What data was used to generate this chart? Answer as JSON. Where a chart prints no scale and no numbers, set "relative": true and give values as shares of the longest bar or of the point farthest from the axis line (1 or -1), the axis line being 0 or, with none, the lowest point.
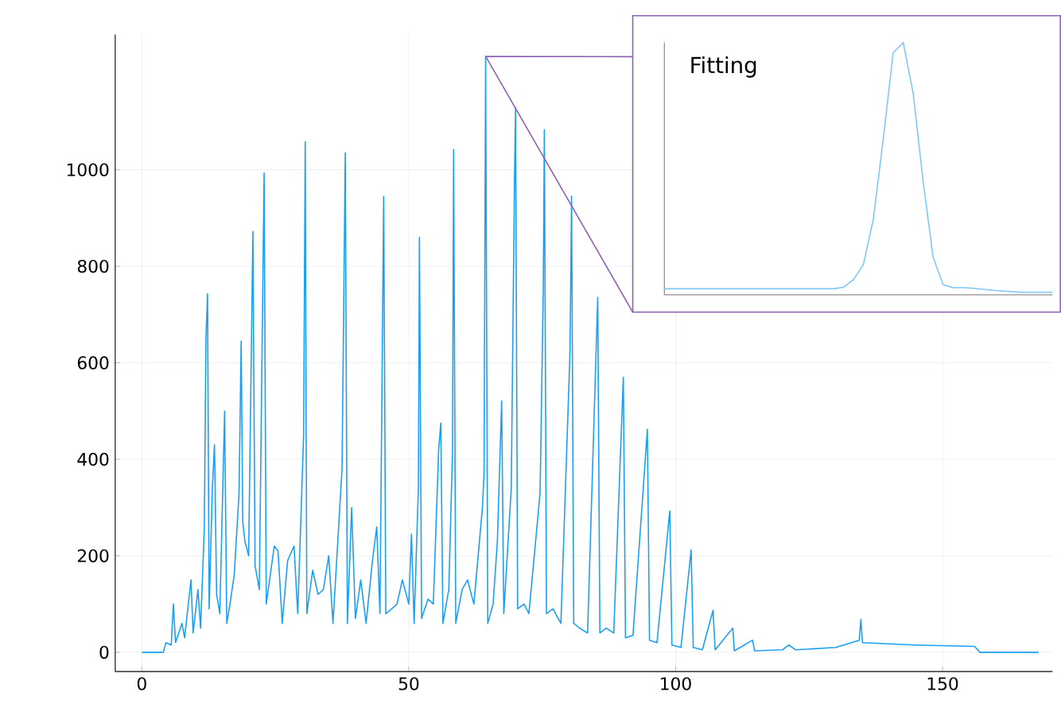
{
  "chart_data": [
    {
      "type": "line",
      "color": "#1a9ff5",
      "xlim": [
        -5,
        170.6
      ],
      "ylim": [
        -40,
        1280
      ],
      "xticks": [
        0,
        50,
        100,
        150
      ],
      "yticks": [
        0,
        200,
        400,
        600,
        800,
        1000
      ],
      "grid": true,
      "x": [
        0,
        4,
        4.5,
        5.5,
        5.9,
        6.3,
        7.5,
        8,
        9.2,
        9.6,
        10.5,
        11,
        11.7,
        12,
        12.3,
        12.6,
        13.2,
        13.6,
        14,
        14.6,
        15.5,
        15.9,
        16.5,
        17.3,
        18.2,
        18.6,
        18.9,
        19.3,
        20,
        20.8,
        21.2,
        22,
        22.9,
        23.3,
        24.8,
        25.5,
        26.3,
        27.3,
        28.5,
        29.2,
        30.3,
        30.6,
        30.9,
        32,
        33,
        34,
        35,
        35.8,
        37.5,
        38.1,
        38.5,
        39.3,
        40,
        41,
        42,
        43.2,
        44,
        44.6,
        45.3,
        45.7,
        46.8,
        47.8,
        48.8,
        50,
        50.5,
        51,
        51.8,
        52,
        52.4,
        53.6,
        54.6,
        55.6,
        56,
        56.4,
        57.5,
        58.2,
        58.4,
        58.8,
        60,
        61,
        62.2,
        63.8,
        64.1,
        64.4,
        64.8,
        65.8,
        66.6,
        67.4,
        67.8,
        69.2,
        69.8,
        70,
        70.4,
        71.6,
        72.5,
        74.6,
        75.2,
        75.4,
        75.8,
        77,
        78.5,
        80.2,
        80.5,
        80.9,
        82,
        83.5,
        85.4,
        85.8,
        87,
        88.4,
        90.2,
        90.6,
        92,
        94.7,
        95.1,
        96.5,
        98.9,
        99.3,
        101,
        102.9,
        103.3,
        105,
        107,
        107.4,
        110.7,
        111,
        114.4,
        114.8,
        120,
        121.2,
        122.5,
        130,
        134.4,
        134.7,
        135,
        145,
        156,
        157,
        168
      ],
      "values": [
        0,
        0,
        20,
        15,
        100,
        20,
        60,
        30,
        150,
        40,
        130,
        50,
        260,
        650,
        743,
        90,
        340,
        430,
        120,
        80,
        500,
        60,
        100,
        160,
        330,
        645,
        270,
        230,
        200,
        872,
        180,
        130,
        993,
        100,
        220,
        210,
        60,
        190,
        220,
        80,
        450,
        1058,
        80,
        170,
        120,
        130,
        200,
        60,
        380,
        1035,
        60,
        300,
        70,
        150,
        60,
        190,
        260,
        80,
        945,
        80,
        90,
        100,
        150,
        100,
        245,
        60,
        340,
        860,
        70,
        110,
        100,
        420,
        475,
        60,
        130,
        420,
        1042,
        60,
        130,
        150,
        100,
        300,
        370,
        1235,
        60,
        100,
        230,
        521,
        80,
        340,
        970,
        1129,
        90,
        100,
        80,
        330,
        750,
        1083,
        80,
        90,
        60,
        620,
        945,
        60,
        50,
        40,
        736,
        40,
        50,
        40,
        570,
        30,
        35,
        462,
        25,
        20,
        293,
        15,
        10,
        212,
        10,
        5,
        87,
        5,
        50,
        3,
        25,
        3,
        5,
        15,
        5,
        10,
        25,
        68,
        20,
        15,
        12,
        0,
        0
      ]
    },
    {
      "type": "line",
      "title": "Fitting",
      "relative": true,
      "color": "#7cc8f8",
      "categories": [
        null,
        null,
        null,
        null,
        null,
        null,
        null,
        null,
        null,
        null,
        null,
        null,
        null,
        null,
        null,
        null,
        null,
        null,
        null,
        null,
        null,
        null,
        null,
        null,
        null,
        null,
        null,
        null,
        null,
        null,
        null,
        null,
        null,
        null,
        null,
        null,
        null,
        null,
        null,
        null
      ],
      "values": [
        0.024,
        0.024,
        0.024,
        0.024,
        0.024,
        0.024,
        0.024,
        0.024,
        0.024,
        0.024,
        0.024,
        0.024,
        0.024,
        0.024,
        0.024,
        0.024,
        0.024,
        0.024,
        0.03,
        0.06,
        0.12,
        0.3,
        0.62,
        0.96,
        1,
        0.8,
        0.45,
        0.15,
        0.04,
        0.028,
        0.028,
        0.026,
        0.022,
        0.018,
        0.015,
        0.012,
        0.01,
        0.01,
        0.01,
        0.01
      ]
    }
  ]
}
